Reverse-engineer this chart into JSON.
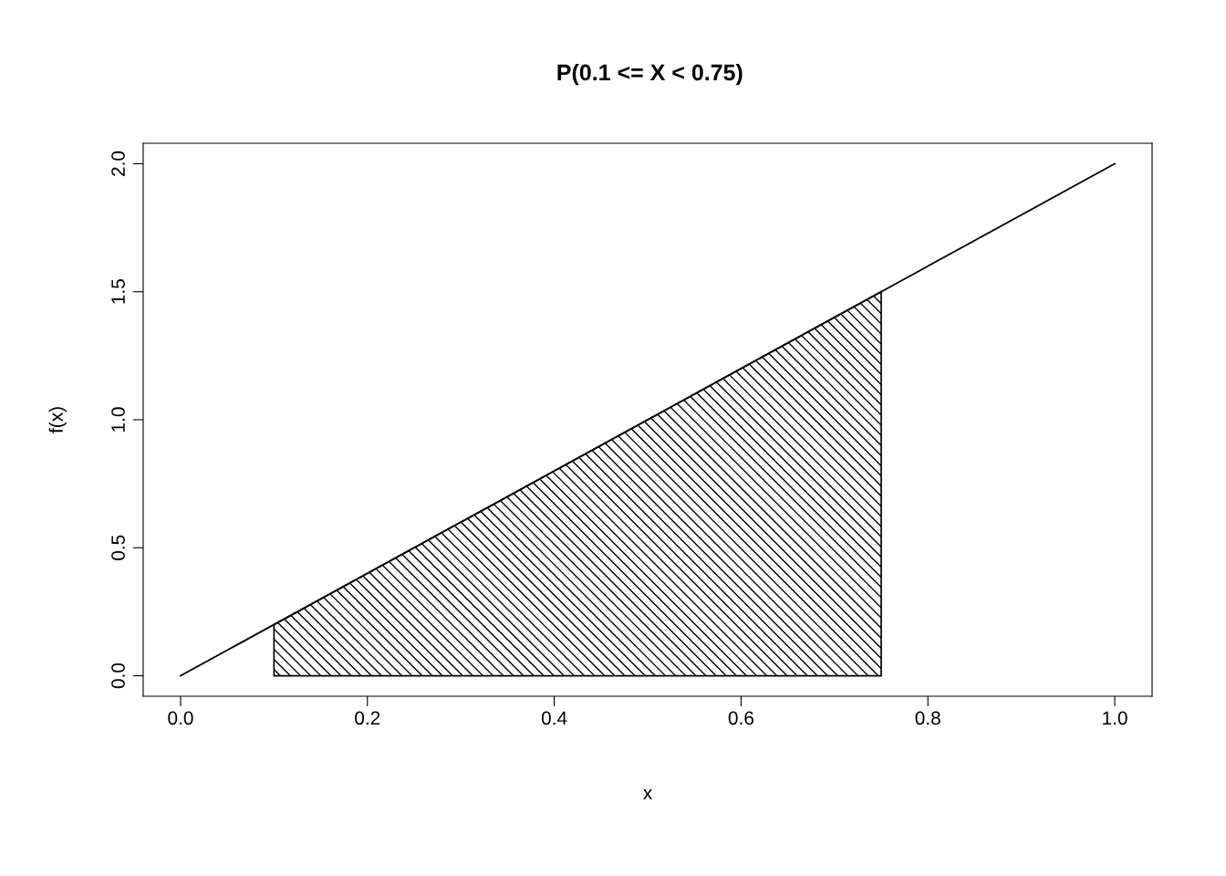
{
  "chart_data": {
    "type": "line",
    "title": "P(0.1 <= X < 0.75)",
    "xlabel": "x",
    "ylabel": "f(x)",
    "series": [
      {
        "type": "area",
        "color": "#000000",
        "x": [
          0.1,
          0.75
        ],
        "values": [
          0.2,
          1.5
        ]
      },
      {
        "color": "#000000",
        "x": [
          0,
          1
        ],
        "values": [
          0,
          2
        ]
      }
    ],
    "xlim": [
      -0.04,
      1.04
    ],
    "ylim": [
      -0.08,
      2.08
    ],
    "xticks": [
      {
        "value": 0,
        "label": "0.0"
      },
      0.2,
      0.4,
      0.6,
      0.8,
      {
        "value": 1,
        "label": "1.0"
      }
    ],
    "yticks": [
      {
        "value": 0,
        "label": "0.0"
      },
      0.5,
      {
        "value": 1,
        "label": "1.0"
      },
      1.5,
      {
        "value": 2,
        "label": "2.0"
      }
    ],
    "grid": false,
    "legend": false
  }
}
